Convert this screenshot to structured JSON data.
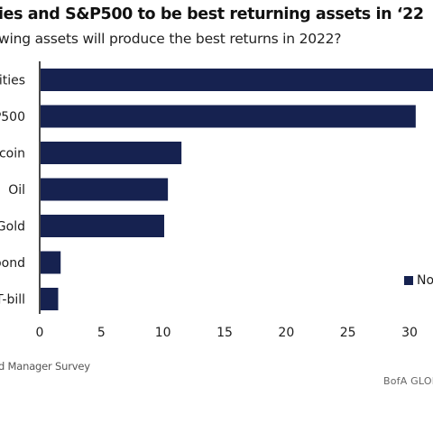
{
  "title": "ies and S&P500 to be best returning assets in ‘22",
  "subtitle": "wing assets will produce the best returns in 2022?",
  "source": "d Manager Survey",
  "brand": "BofA GLOB",
  "legend_label": "No",
  "colors": {
    "bar": "#162250",
    "axis": "#1d1d1d"
  },
  "chart_data": {
    "type": "bar",
    "orientation": "horizontal",
    "categories": [
      "ities",
      "P500",
      "coin",
      "Oil",
      "Gold",
      "bond",
      "T-bill"
    ],
    "values": [
      33,
      30.5,
      11.5,
      10.4,
      10.1,
      1.7,
      1.5
    ],
    "xticks": [
      0,
      5,
      10,
      15,
      20,
      25,
      30
    ],
    "xlim": [
      0,
      33
    ],
    "grid": false,
    "legend_position": "right"
  }
}
